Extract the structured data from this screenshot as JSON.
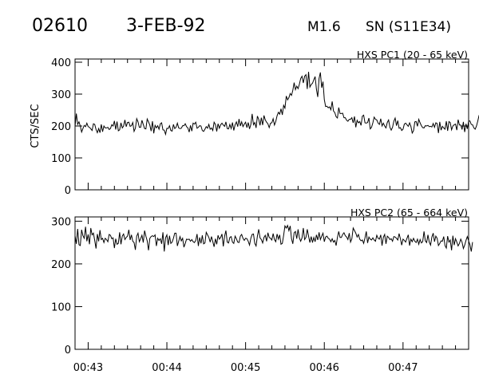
{
  "header": {
    "event_id": "02610",
    "date": "3-FEB-92",
    "goes_class": "M1.6",
    "location": "SN (S11E34)"
  },
  "chart_data": [
    {
      "type": "line",
      "title": "HXS PC1 (20 - 65 keV)",
      "ylabel": "CTS/SEC",
      "ylim": [
        0,
        410
      ],
      "yticks": [
        0,
        100,
        200,
        300,
        400
      ],
      "xlim": [
        "00:42:50",
        "00:47:50"
      ],
      "xticks": [
        "00:43",
        "00:44",
        "00:45",
        "00:46",
        "00:47"
      ],
      "x_start": "00:42:50",
      "sample_seconds": 1,
      "series": [
        {
          "values": [
            199,
            239,
            205,
            213,
            200,
            181,
            192,
            202,
            198,
            209,
            198,
            196,
            191,
            186,
            207,
            205,
            189,
            179,
            192,
            179,
            205,
            182,
            200,
            194,
            194,
            196,
            189,
            192,
            204,
            200,
            216,
            189,
            214,
            185,
            188,
            210,
            194,
            200,
            219,
            198,
            211,
            212,
            199,
            201,
            211,
            183,
            193,
            223,
            213,
            196,
            196,
            218,
            205,
            192,
            191,
            222,
            213,
            203,
            184,
            215,
            177,
            202,
            194,
            201,
            190,
            207,
            210,
            188,
            187,
            174,
            193,
            192,
            201,
            186,
            184,
            205,
            192,
            196,
            209,
            194,
            192,
            193,
            201,
            201,
            207,
            198,
            194,
            181,
            202,
            184,
            209,
            206,
            212,
            193,
            196,
            201,
            200,
            186,
            183,
            190,
            198,
            193,
            205,
            190,
            194,
            186,
            212,
            205,
            183,
            207,
            193,
            204,
            209,
            203,
            199,
            213,
            192,
            191,
            205,
            192,
            211,
            186,
            204,
            213,
            198,
            222,
            200,
            213,
            198,
            206,
            212,
            195,
            211,
            191,
            205,
            238,
            204,
            211,
            194,
            231,
            221,
            202,
            226,
            203,
            233,
            219,
            212,
            207,
            195,
            209,
            210,
            223,
            203,
            214,
            232,
            243,
            237,
            254,
            235,
            265,
            256,
            294,
            282,
            289,
            302,
            296,
            312,
            336,
            314,
            325,
            317,
            331,
            349,
            356,
            335,
            356,
            361,
            316,
            370,
            322,
            330,
            334,
            345,
            355,
            315,
            291,
            349,
            368,
            320,
            339,
            283,
            261,
            262,
            257,
            260,
            251,
            277,
            247,
            242,
            229,
            225,
            258,
            239,
            239,
            240,
            226,
            226,
            218,
            215,
            221,
            221,
            226,
            210,
            230,
            196,
            218,
            210,
            214,
            202,
            231,
            234,
            210,
            209,
            211,
            225,
            191,
            196,
            210,
            228,
            221,
            219,
            209,
            205,
            223,
            200,
            209,
            200,
            194,
            211,
            219,
            196,
            187,
            196,
            215,
            225,
            201,
            217,
            193,
            195,
            186,
            190,
            206,
            209,
            204,
            199,
            210,
            199,
            178,
            185,
            213,
            214,
            199,
            221,
            210,
            201,
            195,
            194,
            201,
            200,
            202,
            198,
            199,
            197,
            208,
            196,
            210,
            208,
            178,
            213,
            187,
            199,
            194,
            190,
            215,
            185,
            214,
            211,
            188,
            200,
            204,
            206,
            187,
            220,
            203,
            203,
            189,
            213,
            181,
            207,
            191,
            215,
            216,
            205,
            204,
            194,
            190,
            200,
            216,
            234,
            195,
            182,
            193,
            199,
            200
          ]
        }
      ]
    },
    {
      "type": "line",
      "title": "HXS PC2 (65 - 664 keV)",
      "ylabel": "",
      "ylim": [
        0,
        310
      ],
      "yticks": [
        0,
        100,
        200,
        300
      ],
      "xlim": [
        "00:42:50",
        "00:47:50"
      ],
      "xticks": [
        "00:43",
        "00:44",
        "00:45",
        "00:46",
        "00:47"
      ],
      "x_start": "00:42:50",
      "sample_seconds": 1,
      "series": [
        {
          "values": [
            266,
            247,
            282,
            245,
            243,
            280,
            266,
            260,
            287,
            253,
            269,
            246,
            284,
            268,
            272,
            255,
            236,
            270,
            253,
            279,
            257,
            260,
            250,
            260,
            257,
            252,
            269,
            267,
            259,
            261,
            237,
            259,
            246,
            248,
            274,
            246,
            265,
            270,
            257,
            262,
            265,
            280,
            256,
            268,
            253,
            250,
            233,
            265,
            272,
            252,
            259,
            267,
            250,
            278,
            265,
            254,
            232,
            260,
            264,
            266,
            264,
            268,
            242,
            260,
            255,
            259,
            247,
            274,
            229,
            261,
            268,
            244,
            266,
            248,
            251,
            260,
            272,
            272,
            242,
            253,
            264,
            254,
            260,
            239,
            248,
            258,
            257,
            258,
            253,
            257,
            252,
            250,
            255,
            270,
            242,
            262,
            248,
            267,
            247,
            249,
            274,
            268,
            262,
            251,
            264,
            252,
            240,
            259,
            246,
            267,
            258,
            262,
            270,
            241,
            265,
            278,
            251,
            249,
            262,
            264,
            251,
            248,
            265,
            259,
            251,
            250,
            265,
            269,
            260,
            255,
            260,
            259,
            253,
            244,
            260,
            269,
            270,
            248,
            242,
            265,
            281,
            261,
            257,
            249,
            262,
            267,
            253,
            273,
            262,
            260,
            256,
            271,
            257,
            252,
            270,
            258,
            268,
            246,
            248,
            267,
            289,
            284,
            290,
            278,
            289,
            259,
            247,
            273,
            276,
            259,
            281,
            261,
            253,
            261,
            284,
            257,
            262,
            281,
            265,
            250,
            264,
            250,
            262,
            252,
            268,
            256,
            274,
            257,
            265,
            272,
            252,
            263,
            265,
            260,
            258,
            252,
            259,
            251,
            255,
            243,
            262,
            276,
            262,
            262,
            269,
            273,
            266,
            263,
            257,
            272,
            251,
            259,
            284,
            278,
            272,
            263,
            269,
            258,
            254,
            256,
            248,
            261,
            276,
            249,
            263,
            258,
            256,
            261,
            256,
            253,
            267,
            260,
            258,
            268,
            243,
            262,
            269,
            247,
            265,
            262,
            257,
            259,
            253,
            264,
            263,
            260,
            256,
            271,
            259,
            244,
            258,
            255,
            251,
            260,
            268,
            243,
            258,
            252,
            260,
            253,
            250,
            258,
            246,
            257,
            249,
            252,
            276,
            254,
            250,
            268,
            251,
            244,
            263,
            272,
            252,
            265,
            260,
            243,
            248,
            254,
            253,
            264,
            243,
            237,
            265,
            251,
            256,
            232,
            266,
            244,
            259,
            251,
            242,
            248,
            258,
            251,
            236,
            244,
            255,
            264,
            254,
            245,
            229,
            251
          ]
        }
      ]
    }
  ]
}
